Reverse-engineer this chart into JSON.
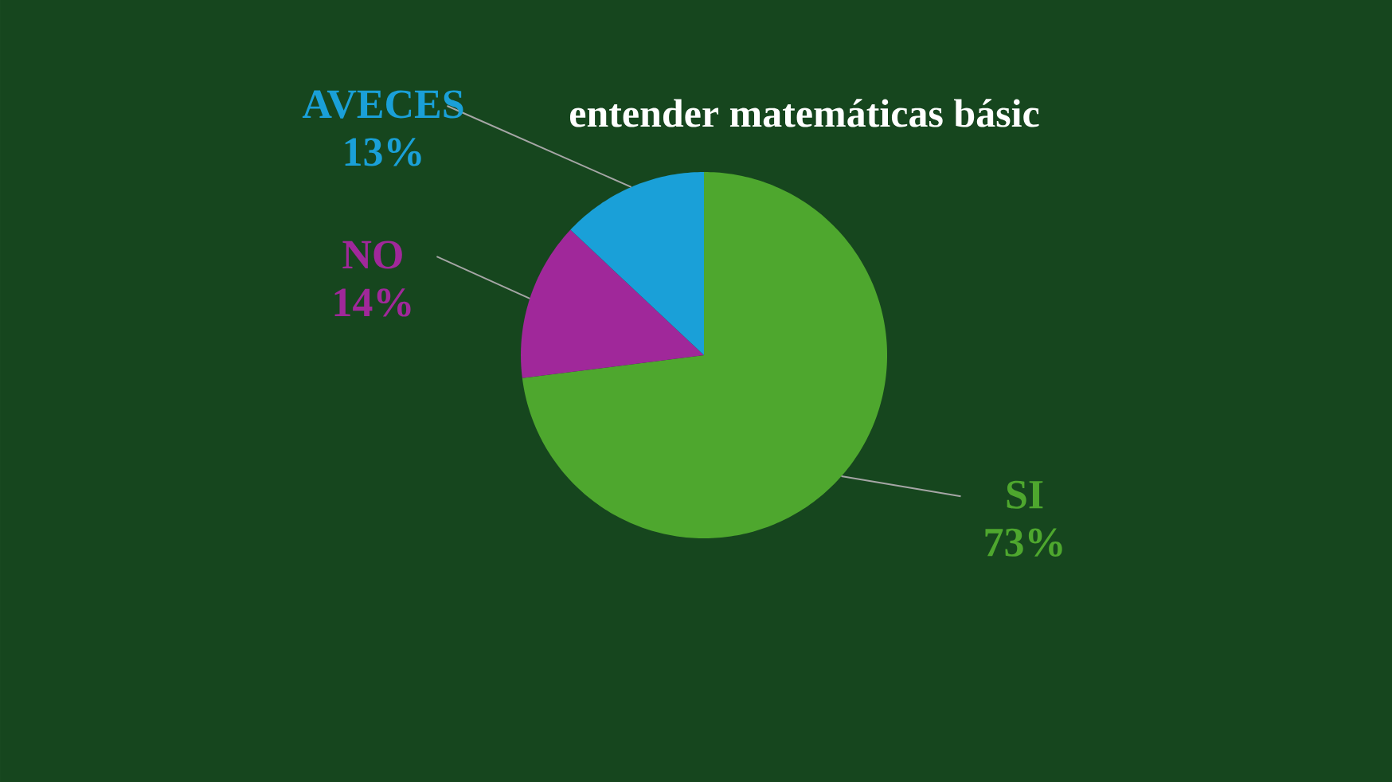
{
  "chart_data": {
    "type": "pie",
    "title": "entender matemáticas básic",
    "categories": [
      "SI",
      "NO",
      "AVECES"
    ],
    "values": [
      73,
      14,
      13
    ],
    "value_labels": [
      "73%",
      "14%",
      "13%"
    ],
    "colors": [
      "#4ea72e",
      "#a0289a",
      "#1aa0d8"
    ]
  }
}
